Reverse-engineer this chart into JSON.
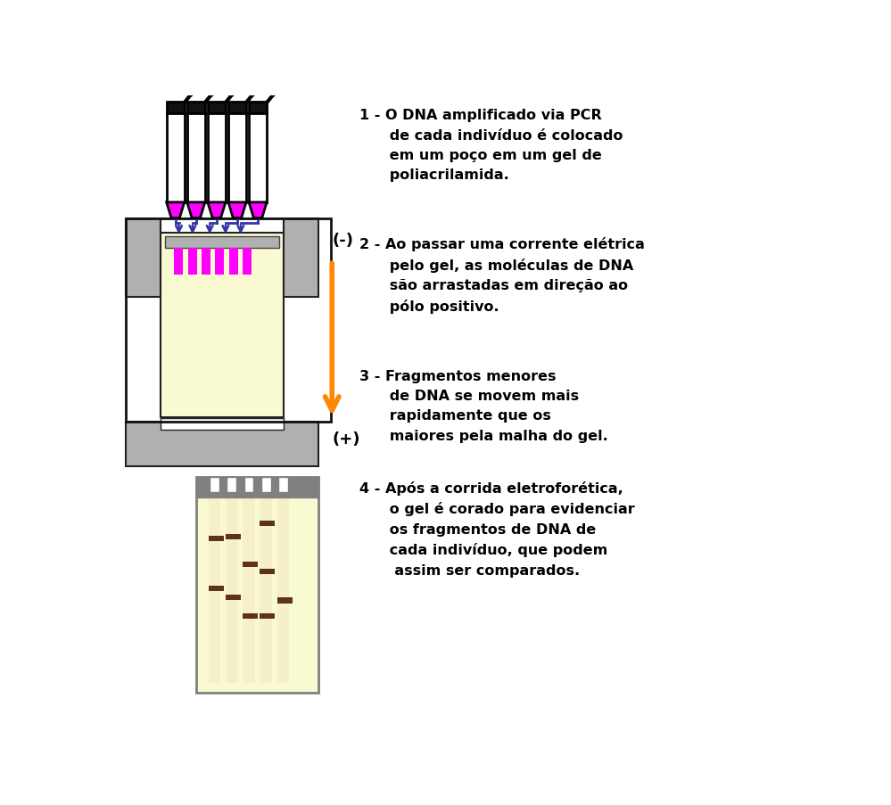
{
  "bg_color": "#ffffff",
  "gel_light_color": "#fafad2",
  "gel_border_color": "#808080",
  "gray_color": "#b0b0b0",
  "magenta_color": "#ff00ff",
  "blue_color": "#3333aa",
  "orange_color": "#ff8800",
  "band_color": "#5c3317",
  "text1": "1 - O DNA amplificado via PCR\n      de cada indivíduo é colocado\n      em um poço em um gel de\n      poliacrilamida.",
  "text2": "2 - Ao passar uma corrente elétrica\n      pelo gel, as moléculas de DNA\n      são arrastadas em direção ao\n      pólo positivo.",
  "text3": "3 - Fragmentos menores\n      de DNA se movem mais\n      rapidamente que os\n      maiores pela malha do gel.",
  "text4": "4 - Após a corrida eletroforética,\n      o gel é corado para evidenciar\n      os fragmentos de DNA de\n      cada indivíduo, que podem\n       assim ser comparados."
}
